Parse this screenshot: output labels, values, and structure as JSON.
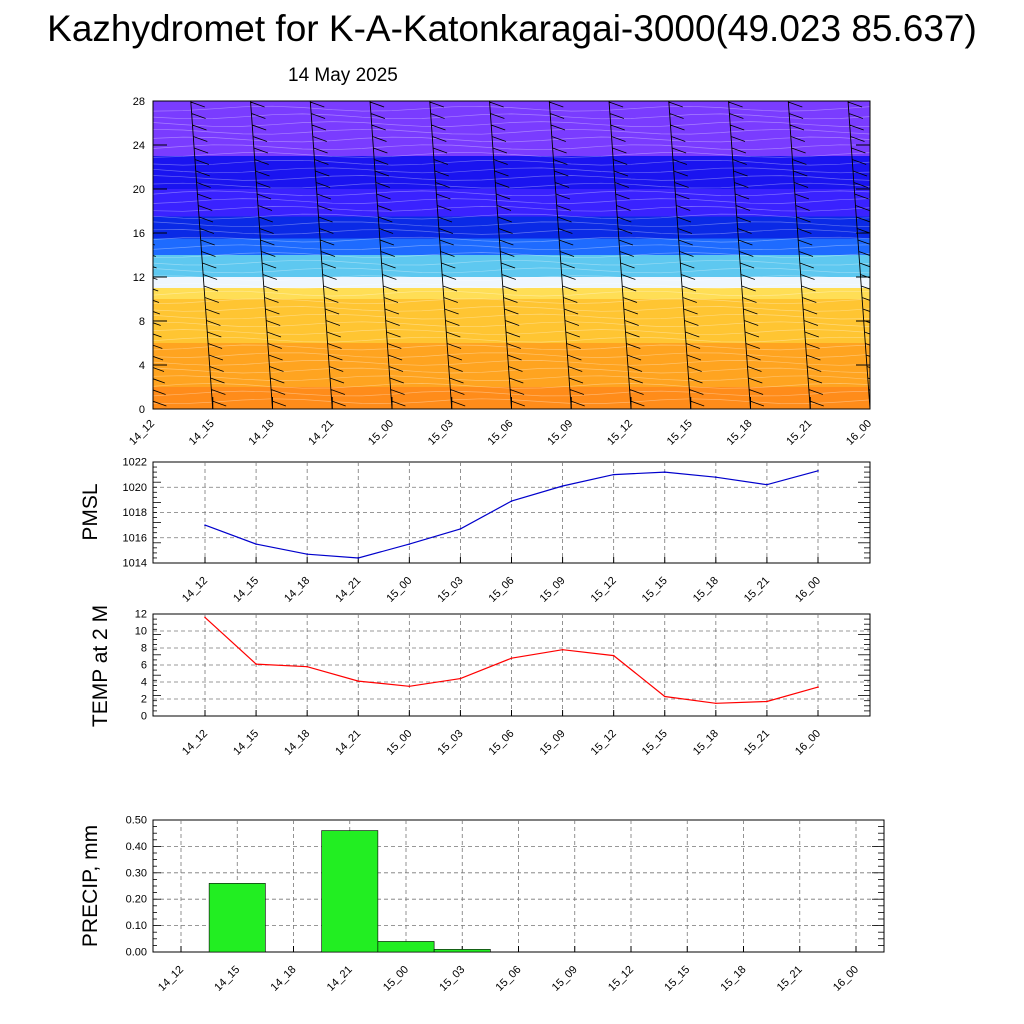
{
  "header": {
    "title": "Kazhydromet for K-A-Katonkaragai-3000(49.023 85.637)",
    "date": "14 May 2025"
  },
  "time_labels": [
    "14_12",
    "14_15",
    "14_18",
    "14_21",
    "15_00",
    "15_03",
    "15_06",
    "15_09",
    "15_12",
    "15_15",
    "15_18",
    "15_21",
    "16_00"
  ],
  "chart_data": [
    {
      "type": "heatmap",
      "name": "vertical-cross-section",
      "x": [
        "14_12",
        "14_15",
        "14_18",
        "14_21",
        "15_00",
        "15_03",
        "15_06",
        "15_09",
        "15_12",
        "15_15",
        "15_18",
        "15_21",
        "16_00"
      ],
      "ylim": [
        0,
        28
      ],
      "yticks": [
        0,
        4,
        8,
        12,
        16,
        20,
        24,
        28
      ],
      "color_bands": [
        {
          "y0": 0,
          "y1": 2,
          "color": "#ff8c1a"
        },
        {
          "y0": 2,
          "y1": 6,
          "color": "#ffa420"
        },
        {
          "y0": 6,
          "y1": 10,
          "color": "#ffc532"
        },
        {
          "y0": 10,
          "y1": 11,
          "color": "#ffde55"
        },
        {
          "y0": 11,
          "y1": 12,
          "color": "#eef6ff"
        },
        {
          "y0": 12,
          "y1": 14,
          "color": "#5ec8f0"
        },
        {
          "y0": 14,
          "y1": 15.5,
          "color": "#1e6bff"
        },
        {
          "y0": 15.5,
          "y1": 17.5,
          "color": "#0a2ae6"
        },
        {
          "y0": 17.5,
          "y1": 20,
          "color": "#3a22ff"
        },
        {
          "y0": 20,
          "y1": 23,
          "color": "#1a14f0"
        },
        {
          "y0": 23,
          "y1": 28,
          "color": "#7a3cff"
        }
      ],
      "colors": {
        "wind_barb": "#000000"
      }
    },
    {
      "type": "line",
      "name": "pmsl",
      "ylabel": "PMSL",
      "x": [
        "14_12",
        "14_15",
        "14_18",
        "14_21",
        "15_00",
        "15_03",
        "15_06",
        "15_09",
        "15_12",
        "15_15",
        "15_18",
        "15_21",
        "16_00"
      ],
      "values": [
        1017.0,
        1015.5,
        1014.7,
        1014.4,
        1015.5,
        1016.7,
        1018.9,
        1020.1,
        1021.0,
        1021.2,
        1020.8,
        1020.2,
        1021.3
      ],
      "ylim": [
        1014,
        1022
      ],
      "yticks": [
        1014,
        1016,
        1018,
        1020,
        1022
      ],
      "grid": true,
      "color": "#0000cc"
    },
    {
      "type": "line",
      "name": "temp2m",
      "ylabel": "TEMP at 2 M",
      "x": [
        "14_12",
        "14_15",
        "14_18",
        "14_21",
        "15_00",
        "15_03",
        "15_06",
        "15_09",
        "15_12",
        "15_15",
        "15_18",
        "15_21",
        "16_00"
      ],
      "values": [
        11.6,
        6.1,
        5.8,
        4.1,
        3.5,
        4.4,
        6.8,
        7.8,
        7.1,
        2.3,
        1.5,
        1.7,
        3.4
      ],
      "ylim": [
        0,
        12
      ],
      "yticks": [
        0,
        2,
        4,
        6,
        8,
        10,
        12
      ],
      "grid": true,
      "color": "#ff0000"
    },
    {
      "type": "bar",
      "name": "precip",
      "ylabel": "PRECIP, mm",
      "categories": [
        "14_12",
        "14_15",
        "14_18",
        "14_21",
        "15_00",
        "15_03",
        "15_06",
        "15_09",
        "15_12",
        "15_15",
        "15_18",
        "15_21",
        "16_00"
      ],
      "values": [
        0,
        0.26,
        0,
        0.46,
        0.04,
        0.01,
        0,
        0,
        0,
        0,
        0,
        0,
        0
      ],
      "ylim": [
        0,
        0.5
      ],
      "yticks": [
        "0.00",
        "0.10",
        "0.20",
        "0.30",
        "0.40",
        "0.50"
      ],
      "grid": true,
      "color": "#22ee22"
    }
  ]
}
